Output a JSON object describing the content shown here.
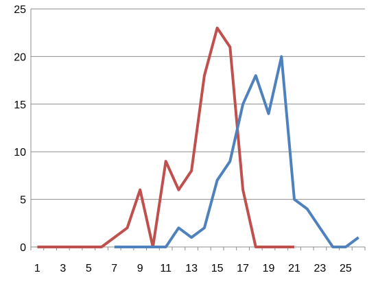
{
  "chart_data": {
    "type": "line",
    "x": [
      1,
      2,
      3,
      4,
      5,
      6,
      7,
      8,
      9,
      10,
      11,
      12,
      13,
      14,
      15,
      16,
      17,
      18,
      19,
      20,
      21,
      22,
      23,
      24,
      25,
      26
    ],
    "x_tick_labels": [
      "1",
      "3",
      "5",
      "7",
      "9",
      "11",
      "13",
      "15",
      "17",
      "19",
      "21",
      "23",
      "25"
    ],
    "y_tick_labels": [
      "0",
      "5",
      "10",
      "15",
      "20",
      "25"
    ],
    "xlim": [
      1,
      26
    ],
    "ylim": [
      0,
      25
    ],
    "grid": "horizontal",
    "legend": "none",
    "series": [
      {
        "color": "#c0504d",
        "x": [
          1,
          2,
          3,
          4,
          5,
          6,
          7,
          8,
          9,
          10,
          11,
          12,
          13,
          14,
          15,
          16,
          17,
          18,
          19,
          20,
          21
        ],
        "values": [
          0,
          0,
          0,
          0,
          0,
          0,
          1,
          2,
          6,
          0,
          9,
          6,
          8,
          18,
          23,
          21,
          6,
          0,
          0,
          0,
          0
        ]
      },
      {
        "color": "#4f81bd",
        "x": [
          7,
          8,
          9,
          10,
          11,
          12,
          13,
          14,
          15,
          16,
          17,
          18,
          19,
          20,
          21,
          22,
          23,
          24,
          25,
          26
        ],
        "values": [
          0,
          0,
          0,
          0,
          0,
          2,
          1,
          2,
          7,
          9,
          15,
          18,
          14,
          20,
          5,
          4,
          2,
          0,
          0,
          1
        ]
      }
    ]
  }
}
